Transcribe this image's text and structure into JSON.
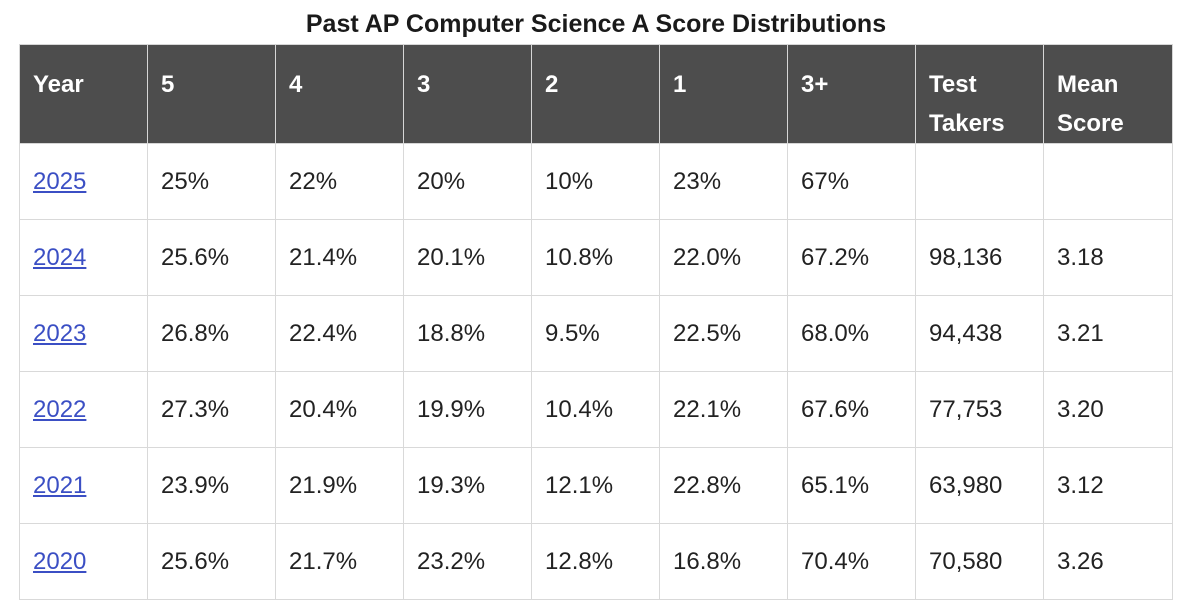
{
  "title": "Past AP Computer Science A Score Distributions",
  "table": {
    "headers": [
      "Year",
      "5",
      "4",
      "3",
      "2",
      "1",
      "3+",
      "Test Takers",
      "Mean Score"
    ],
    "rows": [
      [
        "2025",
        "25%",
        "22%",
        "20%",
        "10%",
        "23%",
        "67%",
        "",
        ""
      ],
      [
        "2024",
        "25.6%",
        "21.4%",
        "20.1%",
        "10.8%",
        "22.0%",
        "67.2%",
        "98,136",
        "3.18"
      ],
      [
        "2023",
        "26.8%",
        "22.4%",
        "18.8%",
        "9.5%",
        "22.5%",
        "68.0%",
        "94,438",
        "3.21"
      ],
      [
        "2022",
        "27.3%",
        "20.4%",
        "19.9%",
        "10.4%",
        "22.1%",
        "67.6%",
        "77,753",
        "3.20"
      ],
      [
        "2021",
        "23.9%",
        "21.9%",
        "19.3%",
        "12.1%",
        "22.8%",
        "65.1%",
        "63,980",
        "3.12"
      ],
      [
        "2020",
        "25.6%",
        "21.7%",
        "23.2%",
        "12.8%",
        "16.8%",
        "70.4%",
        "70,580",
        "3.26"
      ]
    ]
  },
  "colors": {
    "header_bg": "#4d4d4d",
    "link": "#3b4fc4",
    "border": "#d9d9d9"
  }
}
